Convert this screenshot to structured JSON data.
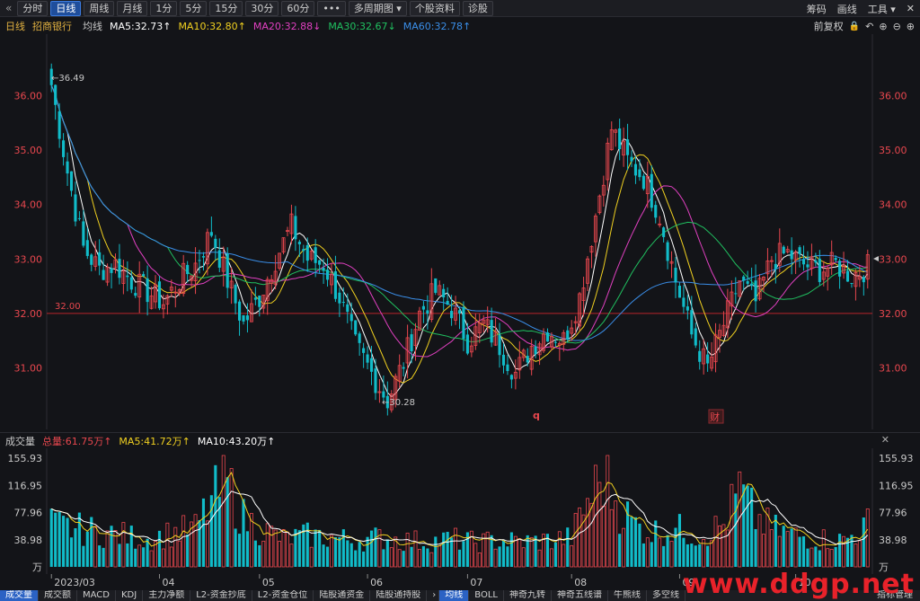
{
  "toolbar": {
    "back_icon": "«",
    "buttons": [
      "分时",
      "日线",
      "周线",
      "月线",
      "1分",
      "5分",
      "15分",
      "30分",
      "60分",
      "•••",
      "多周期图 ▾",
      "个股资料",
      "诊股"
    ],
    "active_index": 1,
    "right_items": [
      "筹码",
      "画线",
      "工具 ▾"
    ],
    "close_icon": "✕"
  },
  "infobar": {
    "period": "日线",
    "stock_name": "招商银行",
    "ma_label": "均线",
    "ma5": "MA5:32.73↑",
    "ma10": "MA10:32.80↑",
    "ma20": "MA20:32.88↓",
    "ma30": "MA30:32.67↓",
    "ma60": "MA60:32.78↑",
    "adjust": "前复权",
    "icons": [
      "🔒",
      "↶",
      "⊕",
      "⊖",
      "⊕"
    ]
  },
  "colors": {
    "up": "#e8474e",
    "down": "#11bcc9",
    "ma5": "#ffffff",
    "ma10": "#f0d020",
    "ma20": "#e040c0",
    "ma30": "#20c060",
    "ma60": "#3a8ee8",
    "price_axis": "#e8474e",
    "vol_axis": "#c8c8c8"
  },
  "chart_data": {
    "type": "candlestick",
    "price_axis": {
      "ticks": [
        "36.00",
        "35.00",
        "34.00",
        "33.00",
        "32.00",
        "31.00"
      ],
      "ylim": [
        30.0,
        37.0
      ]
    },
    "reference_line": "32.00",
    "annotations": {
      "high": "←36.49",
      "low": "←30.28",
      "marker_q": "q",
      "marker_cai": "财"
    },
    "volume": {
      "header_label": "成交量",
      "total": "总量:61.75万↑",
      "ma5": "MA5:41.72万↑",
      "ma10": "MA10:43.20万↑",
      "ticks": [
        "155.93",
        "116.95",
        "77.96",
        "38.98",
        "万"
      ],
      "ylim": [
        0,
        160
      ]
    },
    "dates": [
      "2023/03",
      "04",
      "05",
      "06",
      "07",
      "08",
      "09",
      "10"
    ],
    "close_anchors": [
      [
        0,
        36.2
      ],
      [
        4,
        34.6
      ],
      [
        8,
        33.2
      ],
      [
        12,
        32.8
      ],
      [
        16,
        32.9
      ],
      [
        20,
        32.6
      ],
      [
        24,
        32.4
      ],
      [
        28,
        32.2
      ],
      [
        32,
        32.6
      ],
      [
        36,
        32.9
      ],
      [
        40,
        33.5
      ],
      [
        44,
        32.6
      ],
      [
        48,
        31.8
      ],
      [
        52,
        32.3
      ],
      [
        56,
        33.0
      ],
      [
        60,
        33.6
      ],
      [
        64,
        33.0
      ],
      [
        68,
        32.9
      ],
      [
        72,
        32.3
      ],
      [
        76,
        31.4
      ],
      [
        80,
        30.9
      ],
      [
        84,
        30.4
      ],
      [
        88,
        31.1
      ],
      [
        92,
        32.0
      ],
      [
        96,
        32.4
      ],
      [
        100,
        32.1
      ],
      [
        104,
        31.5
      ],
      [
        108,
        31.8
      ],
      [
        112,
        31.4
      ],
      [
        116,
        30.9
      ],
      [
        120,
        31.4
      ],
      [
        124,
        31.7
      ],
      [
        128,
        31.5
      ],
      [
        132,
        32.3
      ],
      [
        136,
        33.8
      ],
      [
        140,
        35.4
      ],
      [
        144,
        34.8
      ],
      [
        148,
        34.5
      ],
      [
        152,
        33.8
      ],
      [
        156,
        32.6
      ],
      [
        160,
        31.6
      ],
      [
        164,
        31.0
      ],
      [
        168,
        31.8
      ],
      [
        172,
        32.6
      ],
      [
        176,
        32.2
      ],
      [
        180,
        33.0
      ],
      [
        184,
        33.1
      ],
      [
        188,
        32.9
      ],
      [
        192,
        32.8
      ],
      [
        196,
        32.9
      ],
      [
        200,
        32.7
      ],
      [
        204,
        32.85
      ]
    ],
    "volume_anchors": [
      [
        0,
        60
      ],
      [
        6,
        55
      ],
      [
        12,
        50
      ],
      [
        18,
        45
      ],
      [
        24,
        40
      ],
      [
        30,
        48
      ],
      [
        36,
        55
      ],
      [
        40,
        95
      ],
      [
        44,
        120
      ],
      [
        48,
        70
      ],
      [
        52,
        55
      ],
      [
        58,
        40
      ],
      [
        64,
        45
      ],
      [
        70,
        42
      ],
      [
        76,
        38
      ],
      [
        82,
        42
      ],
      [
        88,
        38
      ],
      [
        94,
        36
      ],
      [
        100,
        40
      ],
      [
        106,
        35
      ],
      [
        112,
        38
      ],
      [
        118,
        36
      ],
      [
        124,
        38
      ],
      [
        130,
        42
      ],
      [
        134,
        95
      ],
      [
        138,
        130
      ],
      [
        142,
        85
      ],
      [
        146,
        60
      ],
      [
        150,
        50
      ],
      [
        156,
        55
      ],
      [
        162,
        45
      ],
      [
        168,
        60
      ],
      [
        172,
        110
      ],
      [
        176,
        70
      ],
      [
        180,
        55
      ],
      [
        186,
        45
      ],
      [
        192,
        40
      ],
      [
        198,
        38
      ],
      [
        204,
        60
      ]
    ]
  },
  "vol_header": {
    "total_label": "总量:61.75万↑"
  },
  "tabs": [
    "成交量",
    "成交额",
    "MACD",
    "KDJ",
    "主力净额",
    "L2-资金抄底",
    "L2-资金仓位",
    "陆股通资金",
    "陆股通持股",
    "均线",
    "BOLL",
    "神奇九转",
    "神奇五线谱",
    "牛熊线",
    "多空线"
  ],
  "tab_active": [
    0,
    9
  ],
  "tab_right": "指标管理",
  "watermark": "www.ddgp.net"
}
